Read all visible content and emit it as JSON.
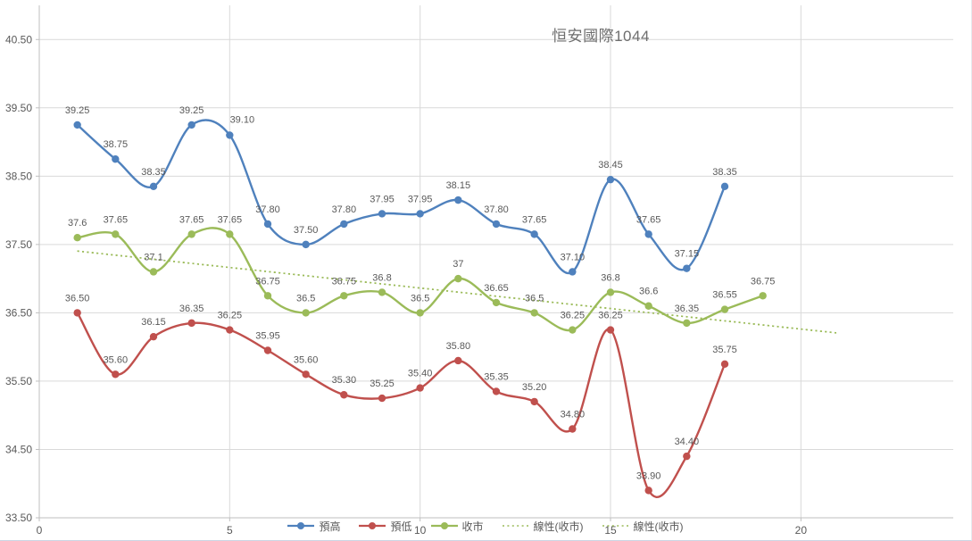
{
  "title": "恒安國際1044",
  "colors": {
    "series_high": "#4F81BD",
    "series_low": "#C0504D",
    "series_close": "#9BBB59",
    "trendline": "#9BBB59",
    "gridline": "#D9D9D9",
    "axis_line": "#BFBFBF",
    "tick_label": "#595959",
    "data_label": "#595959",
    "title_text": "#6E6E6E",
    "background": "#FFFFFF"
  },
  "chart_data": {
    "type": "line",
    "title": "恒安國際1044",
    "xlabel": "",
    "ylabel": "",
    "xlim": [
      0,
      24
    ],
    "ylim": [
      33.5,
      41.0
    ],
    "x_ticks": [
      "0",
      "5",
      "10",
      "15",
      "20"
    ],
    "y_ticks": [
      "40.50",
      "39.50",
      "38.50",
      "37.50",
      "36.50",
      "35.50",
      "34.50",
      "33.50"
    ],
    "grid": true,
    "line_smoothing": true,
    "legend_position": "bottom",
    "series": [
      {
        "id": "high",
        "name": "預高",
        "type": "line",
        "marker": "circle",
        "color": "#4F81BD",
        "x": [
          1,
          2,
          3,
          4,
          5,
          6,
          7,
          8,
          9,
          10,
          11,
          12,
          13,
          14,
          15,
          16,
          17,
          18
        ],
        "values": [
          39.25,
          38.75,
          38.35,
          39.25,
          39.1,
          37.8,
          37.5,
          37.8,
          37.95,
          37.95,
          38.15,
          37.8,
          37.65,
          37.1,
          38.45,
          37.65,
          37.15,
          38.35
        ],
        "labels": [
          "39.25",
          "38.75",
          "38.35",
          "39.25",
          "39.10",
          "37.80",
          "37.50",
          "37.80",
          "37.95",
          "37.95",
          "38.15",
          "37.80",
          "37.65",
          "37.10",
          "38.45",
          "37.65",
          "37.15",
          "38.35"
        ]
      },
      {
        "id": "low",
        "name": "預低",
        "type": "line",
        "marker": "circle",
        "color": "#C0504D",
        "x": [
          1,
          2,
          3,
          4,
          5,
          6,
          7,
          8,
          9,
          10,
          11,
          12,
          13,
          14,
          15,
          16,
          17,
          18
        ],
        "values": [
          36.5,
          35.6,
          36.15,
          36.35,
          36.25,
          35.95,
          35.6,
          35.3,
          35.25,
          35.4,
          35.8,
          35.35,
          35.2,
          34.8,
          36.25,
          33.9,
          34.4,
          35.75
        ],
        "labels": [
          "36.50",
          "35.60",
          "36.15",
          "36.35",
          "36.25",
          "35.95",
          "35.60",
          "35.30",
          "35.25",
          "35.40",
          "35.80",
          "35.35",
          "35.20",
          "34.80",
          "36.25",
          "33.90",
          "34.40",
          "35.75"
        ]
      },
      {
        "id": "close",
        "name": "收市",
        "type": "line",
        "marker": "circle",
        "color": "#9BBB59",
        "x": [
          1,
          2,
          3,
          4,
          5,
          6,
          7,
          8,
          9,
          10,
          11,
          12,
          13,
          14,
          15,
          16,
          17,
          18,
          19
        ],
        "values": [
          37.6,
          37.65,
          37.1,
          37.65,
          37.65,
          36.75,
          36.5,
          36.75,
          36.8,
          36.5,
          37,
          36.65,
          36.5,
          36.25,
          36.8,
          36.6,
          36.35,
          36.55,
          36.75
        ],
        "labels": [
          "37.6",
          "37.65",
          "37.1",
          "37.65",
          "37.65",
          "36.75",
          "36.5",
          "36.75",
          "36.8",
          "36.5",
          "37",
          "36.65",
          "36.5",
          "36.25",
          "36.8",
          "36.6",
          "36.35",
          "36.55",
          "36.75"
        ]
      },
      {
        "id": "trend-close-1",
        "name": "線性(收市)",
        "type": "trendline",
        "line_style": "dotted",
        "color": "#9BBB59",
        "slope": -0.0601,
        "intercept": 37.464,
        "x_range": [
          1,
          21
        ]
      },
      {
        "id": "trend-close-2",
        "name": "線性(收市)",
        "type": "trendline",
        "line_style": "dotted",
        "color": "#9BBB59",
        "slope": -0.0601,
        "intercept": 37.464,
        "x_range": [
          1,
          21
        ]
      }
    ]
  }
}
